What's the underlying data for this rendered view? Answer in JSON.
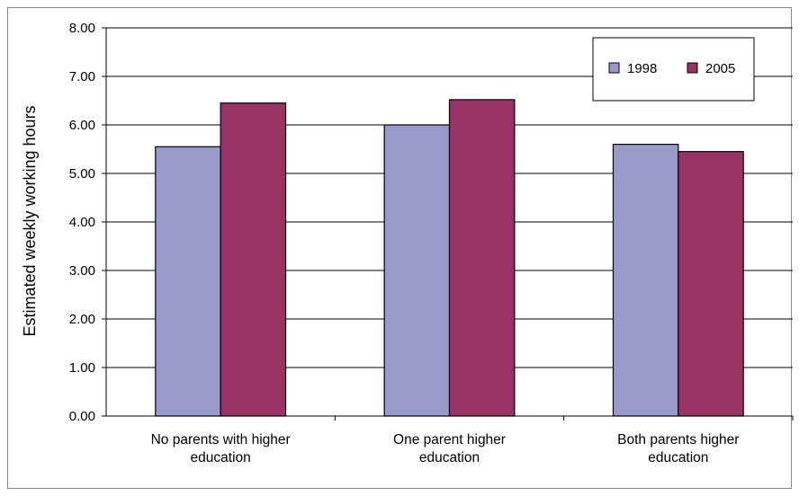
{
  "chart_data": {
    "type": "bar",
    "title": "",
    "xlabel": "",
    "ylabel": "Estimated weekly working hours",
    "ylim": [
      0,
      8
    ],
    "yticks": [
      "0.00",
      "1.00",
      "2.00",
      "3.00",
      "4.00",
      "5.00",
      "6.00",
      "7.00",
      "8.00"
    ],
    "categories": [
      [
        "No parents with higher",
        "education"
      ],
      [
        "One parent higher",
        "education"
      ],
      [
        "Both parents higher",
        "education"
      ]
    ],
    "series": [
      {
        "name": "1998",
        "color": "#9999cc",
        "values": [
          5.55,
          6.0,
          5.6
        ]
      },
      {
        "name": "2005",
        "color": "#993366",
        "values": [
          6.45,
          6.52,
          5.45
        ]
      }
    ],
    "grid": true,
    "legend": "top-right"
  }
}
